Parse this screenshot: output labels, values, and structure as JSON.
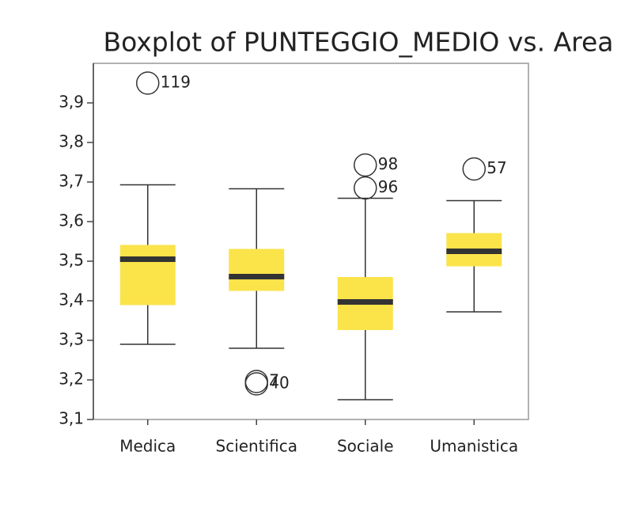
{
  "chart_data": {
    "type": "boxplot",
    "title": "Boxplot of PUNTEGGIO_MEDIO vs. Area",
    "categories": [
      "Medica",
      "Scientifica",
      "Sociale",
      "Umanistica"
    ],
    "whisker_low": [
      3.29,
      3.28,
      3.15,
      3.372
    ],
    "q1": [
      3.389,
      3.425,
      3.326,
      3.487
    ],
    "median": [
      3.505,
      3.461,
      3.397,
      3.525
    ],
    "q3": [
      3.541,
      3.531,
      3.46,
      3.571
    ],
    "whisker_high": [
      3.693,
      3.683,
      3.659,
      3.653
    ],
    "outliers": [
      [
        {
          "value": 3.95,
          "label": "119"
        }
      ],
      [
        {
          "value": 3.196,
          "label": "7"
        },
        {
          "value": 3.19,
          "label": "40"
        }
      ],
      [
        {
          "value": 3.743,
          "label": "98"
        },
        {
          "value": 3.685,
          "label": "96"
        }
      ],
      [
        {
          "value": 3.733,
          "label": "57"
        }
      ]
    ],
    "box_color": "#fbe34a",
    "median_color": "#333333",
    "ylim": [
      3.1,
      4.0
    ],
    "yticks": [
      {
        "value": 3.1,
        "label": "3,1"
      },
      {
        "value": 3.2,
        "label": "3,2"
      },
      {
        "value": 3.3,
        "label": "3,3"
      },
      {
        "value": 3.4,
        "label": "3,4"
      },
      {
        "value": 3.5,
        "label": "3,5"
      },
      {
        "value": 3.6,
        "label": "3,6"
      },
      {
        "value": 3.7,
        "label": "3,7"
      },
      {
        "value": 3.8,
        "label": "3,8"
      },
      {
        "value": 3.9,
        "label": "3,9"
      }
    ]
  }
}
